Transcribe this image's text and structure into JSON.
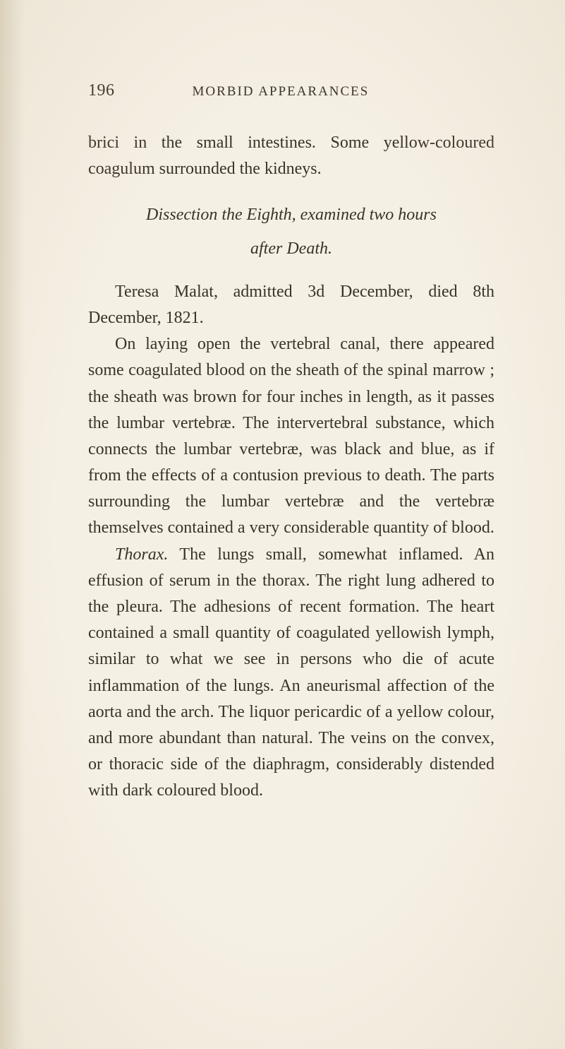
{
  "header": {
    "page_number": "196",
    "running_title": "MORBID APPEARANCES"
  },
  "paragraphs": {
    "continuation": "brici in the small intestines. Some yellow-coloured coagulum surrounded the kidneys.",
    "section_title_line1": "Dissection the Eighth, examined two hours",
    "section_title_line2": "after Death.",
    "p1": "Teresa Malat, admitted 3d December, died 8th December, 1821.",
    "p2": "On laying open the vertebral canal, there appeared some coagulated blood on the sheath of the spinal marrow ; the sheath was brown for four inches in length, as it passes the lumbar vertebræ. The intervertebral substance, which connects the lumbar vertebræ, was black and blue, as if from the effects of a contusion previous to death. The parts surrounding the lumbar vertebræ and the vertebræ themselves contained a very considerable quantity of blood.",
    "p3_prefix": "Thorax.",
    "p3_rest": " The lungs small, somewhat inflamed. An effusion of serum in the thorax. The right lung adhered to the pleura. The adhesions of recent formation. The heart contained a small quantity of coagulated yellowish lymph, similar to what we see in persons who die of acute inflammation of the lungs. An aneurismal affection of the aorta and the arch. The liquor pericardic of a yellow colour, and more abundant than natural. The veins on the convex, or thoracic side of the diaphragm, considerably distended with dark coloured blood."
  },
  "colors": {
    "background": "#f5f0e4",
    "text": "#3a3228"
  },
  "typography": {
    "body_fontsize": 24,
    "header_number_fontsize": 24,
    "running_title_fontsize": 19,
    "line_height": 1.55
  }
}
